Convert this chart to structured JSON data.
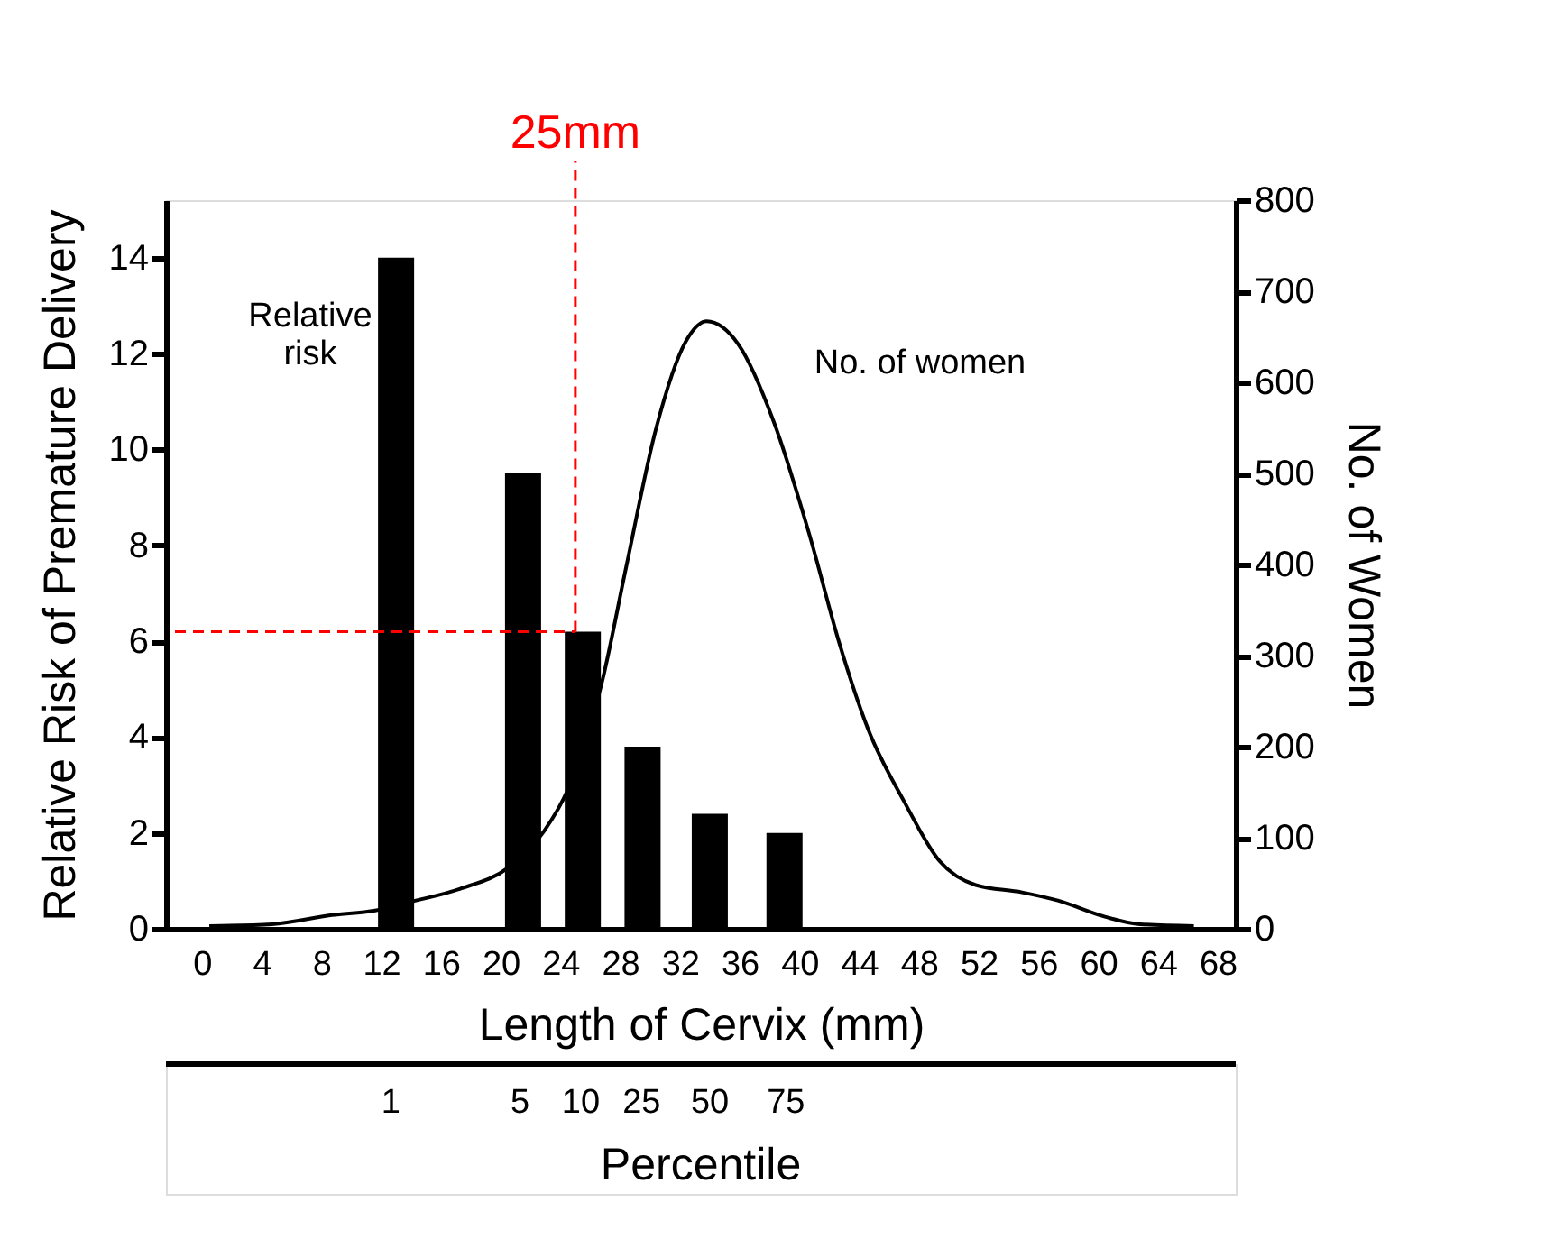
{
  "chart_data": {
    "type": "bar",
    "xlabel": "Length of Cervix (mm)",
    "ylabel": "Relative Risk of Premature Delivery",
    "y2label": "No. of Women",
    "xlim": [
      -1.8,
      68.6
    ],
    "xticks": [
      0,
      4,
      8,
      12,
      16,
      20,
      24,
      28,
      32,
      36,
      40,
      44,
      48,
      52,
      56,
      60,
      64,
      68
    ],
    "ylim": [
      0,
      15.2
    ],
    "yticks": [
      0,
      2,
      4,
      6,
      8,
      10,
      12,
      14
    ],
    "y2lim": [
      0,
      800
    ],
    "y2ticks": [
      0,
      100,
      200,
      300,
      400,
      500,
      600,
      700,
      800
    ],
    "series": [
      {
        "name": "Relative risk",
        "color": "#000000",
        "x": [
          13,
          21.5,
          25.5,
          29.5,
          34,
          39
        ],
        "values": [
          14,
          9.5,
          6.2,
          3.8,
          2.4,
          2.0
        ]
      },
      {
        "name": "No. of women",
        "type": "line",
        "axis": "y2",
        "color": "#000000",
        "x": [
          0.5,
          4.7,
          8.7,
          11.6,
          14.1,
          17.3,
          20.5,
          22.9,
          24.5,
          26.8,
          28.4,
          30.4,
          32.4,
          33.8,
          35.9,
          38.3,
          40.7,
          42.7,
          44.6,
          47.0,
          49.4,
          51.8,
          54.9,
          57.3,
          60.5,
          62.8,
          66.4
        ],
        "values": [
          3,
          5,
          15,
          20,
          30,
          44,
          67,
          107,
          153,
          272,
          397,
          549,
          645,
          667,
          642,
          556,
          431,
          312,
          219,
          140,
          74,
          48,
          40,
          31,
          13,
          5,
          3
        ]
      }
    ],
    "ref_lines": [
      {
        "axis": "x",
        "value": 25,
        "label": "25mm",
        "color": "#ff0000",
        "line_style": "dashed"
      },
      {
        "axis": "y",
        "value": 6.2,
        "color": "#ff0000",
        "line_style": "dashed"
      }
    ],
    "annotations": [
      "1",
      "5",
      "10",
      "25",
      "50",
      "75",
      "Percentile"
    ],
    "grid": false,
    "legend": false,
    "marker": "none",
    "line_style": "solid"
  }
}
